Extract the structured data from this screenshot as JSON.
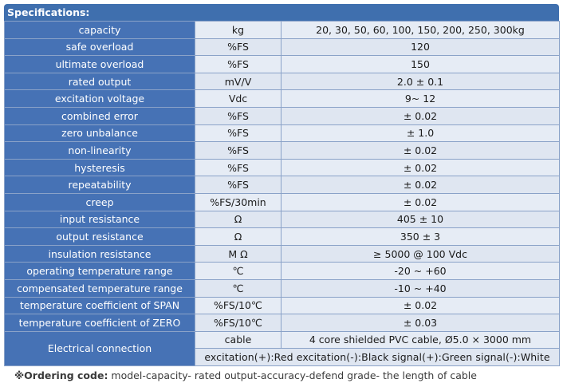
{
  "header": {
    "title": "Specifications:"
  },
  "rows": [
    {
      "label": "capacity",
      "unit": "kg",
      "value": "20, 30, 50, 60, 100, 150, 200, 250, 300kg"
    },
    {
      "label": "safe overload",
      "unit": "%FS",
      "value": "120"
    },
    {
      "label": "ultimate overload",
      "unit": "%FS",
      "value": "150"
    },
    {
      "label": "rated output",
      "unit": "mV/V",
      "value": "2.0 ± 0.1"
    },
    {
      "label": "excitation voltage",
      "unit": "Vdc",
      "value": "9~ 12"
    },
    {
      "label": "combined error",
      "unit": "%FS",
      "value": "± 0.02"
    },
    {
      "label": "zero unbalance",
      "unit": "%FS",
      "value": "± 1.0"
    },
    {
      "label": "non-linearity",
      "unit": "%FS",
      "value": "± 0.02"
    },
    {
      "label": "hysteresis",
      "unit": "%FS",
      "value": "± 0.02"
    },
    {
      "label": "repeatability",
      "unit": "%FS",
      "value": "± 0.02"
    },
    {
      "label": "creep",
      "unit": "%FS/30min",
      "value": "± 0.02"
    },
    {
      "label": "input resistance",
      "unit": "Ω",
      "value": "405 ± 10"
    },
    {
      "label": "output resistance",
      "unit": "Ω",
      "value": "350 ± 3"
    },
    {
      "label": "insulation resistance",
      "unit": "M Ω",
      "value": "≥ 5000 @ 100 Vdc"
    },
    {
      "label": "operating temperature range",
      "unit": "℃",
      "value": "-20 ~ +60"
    },
    {
      "label": "compensated temperature range",
      "unit": "℃",
      "value": "-10 ~ +40"
    },
    {
      "label": "temperature coefficient of SPAN",
      "unit": "%FS/10℃",
      "value": "± 0.02"
    },
    {
      "label": "temperature coefficient of ZERO",
      "unit": "%FS/10℃",
      "value": "± 0.03"
    }
  ],
  "electrical": {
    "label": "Electrical connection",
    "cable_label": "cable",
    "cable_value": "4 core shielded PVC cable, Ø5.0 × 3000 mm",
    "wiring": "excitation(+):Red excitation(-):Black signal(+):Green  signal(-):White"
  },
  "note": {
    "prefix": "※Ordering code:",
    "text": " model-capacity- rated output-accuracy-defend grade- the length of cable"
  }
}
